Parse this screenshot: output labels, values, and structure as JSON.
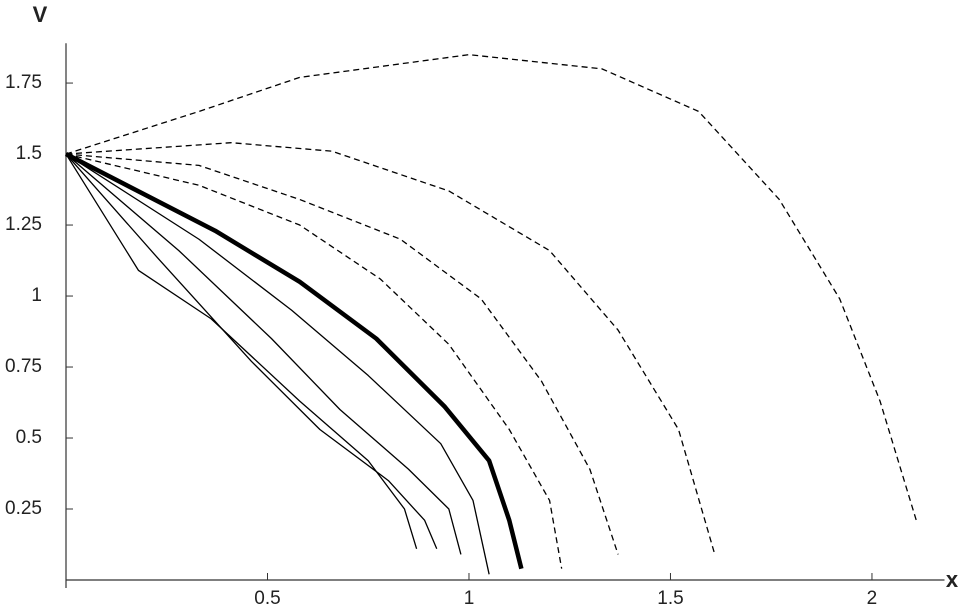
{
  "chart_data": {
    "type": "line",
    "x_label": "x",
    "y_label": "V",
    "xlim": [
      0,
      2.18
    ],
    "ylim": [
      0,
      1.89
    ],
    "xticks": [
      0.5,
      1,
      1.5,
      2
    ],
    "yticks": [
      0.25,
      0.5,
      0.75,
      1,
      1.25,
      1.5,
      1.75
    ],
    "grid": false,
    "series": [
      {
        "color": "#000000",
        "dashed": true,
        "width": 1.3,
        "x": [
          0,
          0.33,
          0.58,
          1.0,
          1.33,
          1.57,
          1.77,
          1.92,
          2.02,
          2.11
        ],
        "values": [
          1.5,
          1.65,
          1.77,
          1.85,
          1.8,
          1.65,
          1.34,
          0.99,
          0.63,
          0.21
        ]
      },
      {
        "color": "#000000",
        "dashed": true,
        "width": 1.3,
        "x": [
          0,
          0.41,
          0.66,
          0.95,
          1.2,
          1.37,
          1.52,
          1.61
        ],
        "values": [
          1.5,
          1.54,
          1.51,
          1.37,
          1.16,
          0.88,
          0.53,
          0.09
        ]
      },
      {
        "color": "#000000",
        "dashed": true,
        "width": 1.3,
        "x": [
          0,
          0.33,
          0.58,
          0.83,
          1.03,
          1.18,
          1.3,
          1.37
        ],
        "values": [
          1.5,
          1.46,
          1.34,
          1.2,
          0.99,
          0.7,
          0.39,
          0.09
        ]
      },
      {
        "color": "#000000",
        "dashed": true,
        "width": 1.3,
        "x": [
          0,
          0.33,
          0.58,
          0.78,
          0.95,
          1.1,
          1.2,
          1.23
        ],
        "values": [
          1.5,
          1.39,
          1.25,
          1.06,
          0.83,
          0.53,
          0.28,
          0.04
        ]
      },
      {
        "color": "#000000",
        "dashed": false,
        "width": 4.5,
        "x": [
          0,
          0.37,
          0.58,
          0.77,
          0.94,
          1.05,
          1.1,
          1.13
        ],
        "values": [
          1.5,
          1.23,
          1.05,
          0.85,
          0.61,
          0.42,
          0.21,
          0.04
        ]
      },
      {
        "color": "#000000",
        "dashed": false,
        "width": 1.3,
        "x": [
          0,
          0.33,
          0.56,
          0.75,
          0.93,
          1.01,
          1.05
        ],
        "values": [
          1.5,
          1.2,
          0.95,
          0.72,
          0.48,
          0.28,
          0.02
        ]
      },
      {
        "color": "#000000",
        "dashed": false,
        "width": 1.3,
        "x": [
          0,
          0.28,
          0.51,
          0.68,
          0.85,
          0.95,
          0.98
        ],
        "values": [
          1.5,
          1.16,
          0.85,
          0.6,
          0.39,
          0.25,
          0.09
        ]
      },
      {
        "color": "#000000",
        "dashed": false,
        "width": 1.3,
        "x": [
          0,
          0.23,
          0.46,
          0.63,
          0.8,
          0.89,
          0.92
        ],
        "values": [
          1.5,
          1.13,
          0.77,
          0.53,
          0.35,
          0.21,
          0.11
        ]
      },
      {
        "color": "#000000",
        "dashed": false,
        "width": 1.3,
        "x": [
          0,
          0.18,
          0.36,
          0.58,
          0.75,
          0.84,
          0.87
        ],
        "values": [
          1.5,
          1.09,
          0.92,
          0.63,
          0.42,
          0.25,
          0.11
        ]
      }
    ]
  }
}
